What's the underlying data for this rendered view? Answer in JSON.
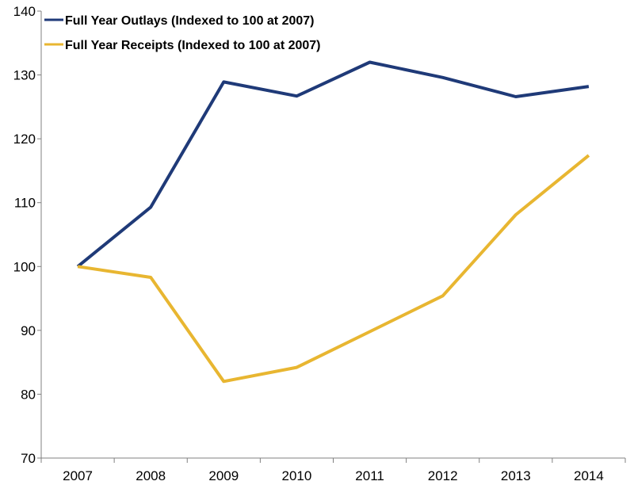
{
  "chart_data": {
    "type": "line",
    "title": "",
    "xlabel": "",
    "ylabel": "",
    "categories": [
      "2007",
      "2008",
      "2009",
      "2010",
      "2011",
      "2012",
      "2013",
      "2014"
    ],
    "ylim": [
      70,
      140
    ],
    "yticks": [
      "70",
      "80",
      "90",
      "100",
      "110",
      "120",
      "130",
      "140"
    ],
    "grid": false,
    "legend_position": "top-left",
    "series": [
      {
        "name": "Full Year Outlays (Indexed to 100 at 2007)",
        "color": "#1f3a78",
        "values": [
          100.0,
          109.3,
          128.9,
          126.7,
          132.0,
          129.6,
          126.6,
          128.2
        ]
      },
      {
        "name": "Full Year Receipts (Indexed to 100 at 2007)",
        "color": "#e8b631",
        "values": [
          100.0,
          98.3,
          82.0,
          84.2,
          89.8,
          95.4,
          108.1,
          117.4
        ]
      }
    ]
  }
}
